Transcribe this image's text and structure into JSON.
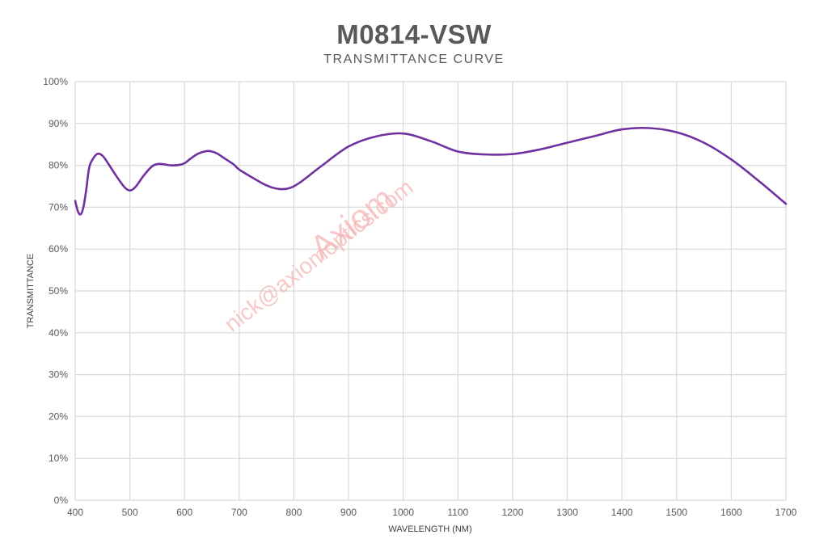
{
  "chart_data": {
    "type": "line",
    "title": "M0814-VSW",
    "subtitle": "TRANSMITTANCE CURVE",
    "xlabel": "WAVELENGTH (NM)",
    "ylabel": "TRANSMITTANCE",
    "xlim": [
      400,
      1700
    ],
    "ylim": [
      0,
      100
    ],
    "x_ticks": [
      "400",
      "500",
      "600",
      "700",
      "800",
      "900",
      "1000",
      "1100",
      "1200",
      "1300",
      "1400",
      "1500",
      "1600",
      "1700"
    ],
    "y_ticks": [
      "0%",
      "10%",
      "20%",
      "30%",
      "40%",
      "50%",
      "60%",
      "70%",
      "80%",
      "90%",
      "100%"
    ],
    "grid": true,
    "line_color": "#7030a0",
    "series": [
      {
        "x": [
          400,
          405,
          410,
          415,
          420,
          425,
          430,
          440,
          450,
          460,
          475,
          490,
          500,
          510,
          525,
          540,
          550,
          560,
          575,
          590,
          600,
          610,
          625,
          640,
          650,
          660,
          675,
          690,
          700,
          725,
          750,
          770,
          790,
          810,
          850,
          900,
          950,
          1000,
          1050,
          1100,
          1150,
          1200,
          1250,
          1300,
          1350,
          1400,
          1450,
          1500,
          1550,
          1600,
          1650,
          1700
        ],
        "y": [
          71.5,
          69,
          68.3,
          70,
          74,
          79,
          81,
          82.7,
          82.3,
          80.5,
          77.5,
          74.8,
          74,
          74.8,
          77.5,
          79.7,
          80.3,
          80.3,
          80,
          80.1,
          80.5,
          81.5,
          82.8,
          83.4,
          83.3,
          82.8,
          81.5,
          80.2,
          79,
          77,
          75.2,
          74.4,
          74.5,
          75.8,
          79.8,
          84.5,
          86.9,
          87.6,
          85.8,
          83.3,
          82.6,
          82.7,
          83.8,
          85.4,
          87,
          88.6,
          88.9,
          87.9,
          85.4,
          81.4,
          76.3,
          70.8
        ]
      }
    ],
    "watermark": [
      "Axiom",
      "nick@axiomoptics.com"
    ]
  }
}
